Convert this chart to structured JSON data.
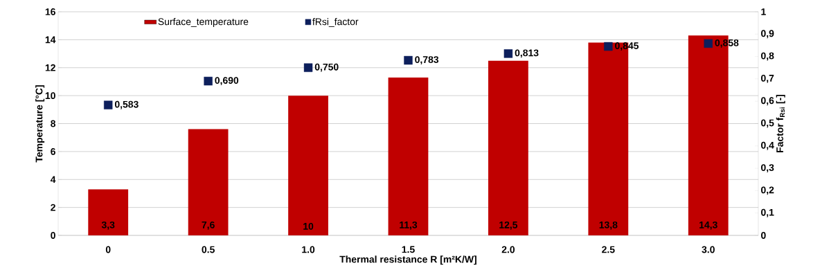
{
  "chart_data": {
    "type": "bar",
    "categories": [
      "0",
      "0.5",
      "1.0",
      "1.5",
      "2.0",
      "2.5",
      "3.0"
    ],
    "xlabel": "Thermal resistance R [m²K/W]",
    "ylabel": "Temperature [°C]",
    "y2label": "Factor f$_{Rsi}$ [-]",
    "series": [
      {
        "name": "Surface_temperature",
        "color": "#c00000",
        "values": [
          3.3,
          7.6,
          10,
          11.3,
          12.5,
          13.8,
          14.3
        ],
        "value_labels": [
          "3,3",
          "7,6",
          "10",
          "11,3",
          "12,5",
          "13,8",
          "14,3"
        ]
      },
      {
        "name": "fRsi_factor",
        "type": "scatter",
        "axis": "y2",
        "color": "#0d1f5c",
        "values": [
          0.583,
          0.69,
          0.75,
          0.783,
          0.813,
          0.845,
          0.858
        ],
        "value_labels": [
          "0,583",
          "0,690",
          "0,750",
          "0,783",
          "0,813",
          "0,845",
          "0,858"
        ]
      }
    ],
    "ylim": [
      0,
      16
    ],
    "yticks": [
      0,
      2,
      4,
      6,
      8,
      10,
      12,
      14,
      16
    ],
    "y2lim": [
      0,
      1
    ],
    "y2ticks": [
      0,
      {
        "value": 0.1,
        "label": "0,1"
      },
      {
        "value": 0.2,
        "label": "0,2"
      },
      {
        "value": 0.3,
        "label": "0,3"
      },
      {
        "value": 0.4,
        "label": "0,4"
      },
      {
        "value": 0.5,
        "label": "0,5"
      },
      {
        "value": 0.6,
        "label": "0,6"
      },
      {
        "value": 0.7,
        "label": "0,7"
      },
      {
        "value": 0.8,
        "label": "0,8"
      },
      {
        "value": 0.9,
        "label": "0,9"
      },
      1
    ],
    "grid": "y",
    "legend": "top left",
    "marker": "square"
  }
}
